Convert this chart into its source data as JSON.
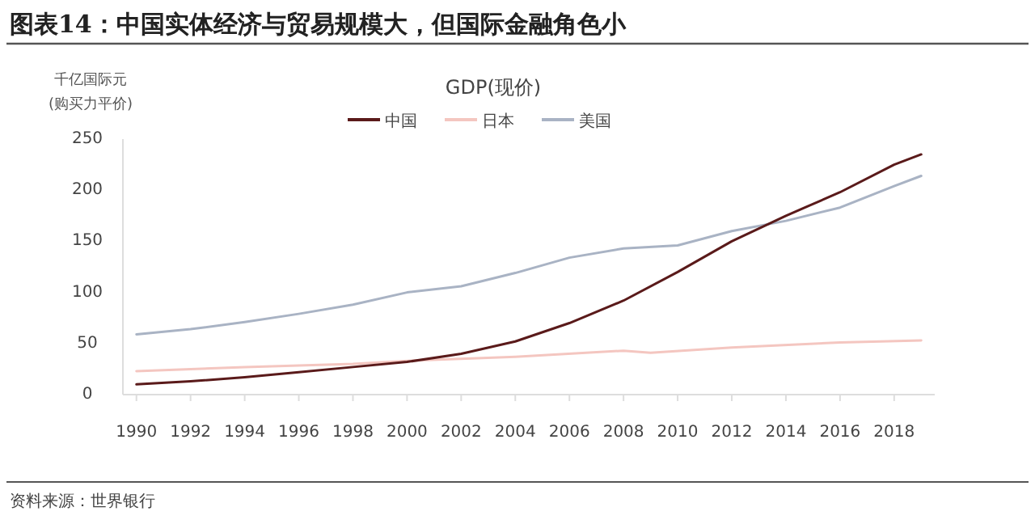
{
  "chart_data": {
    "type": "line",
    "title": "图表14：中国实体经济与贸易规模大，但国际金融角色小",
    "subtitle": "GDP(现价)",
    "ylabel": "千亿国际元\n(购买力平价)",
    "annotations": [
      "资料来源：世界银行"
    ],
    "xlim": [
      1989.5,
      2019.5
    ],
    "xticks": [
      1990,
      1992,
      1994,
      1996,
      1998,
      2000,
      2002,
      2004,
      2006,
      2008,
      2010,
      2012,
      2014,
      2016,
      2018
    ],
    "ylim": [
      0,
      250
    ],
    "yticks": [
      0,
      50,
      100,
      150,
      200,
      250
    ],
    "grid": false,
    "legend": "top",
    "marker": "none",
    "line_style": "solid",
    "series": [
      {
        "name": "中国",
        "color": "#5a1a1a",
        "x": [
          1990,
          1992,
          1994,
          1996,
          1998,
          2000,
          2002,
          2004,
          2006,
          2008,
          2010,
          2012,
          2014,
          2016,
          2018,
          2019
        ],
        "values": [
          10,
          13,
          17,
          22,
          27,
          32,
          40,
          52,
          70,
          92,
          120,
          150,
          175,
          198,
          225,
          235
        ]
      },
      {
        "name": "日本",
        "color": "#f4c6c0",
        "x": [
          1990,
          1994,
          1998,
          2000,
          2004,
          2008,
          2009,
          2012,
          2016,
          2019
        ],
        "values": [
          23,
          27,
          30,
          33,
          37,
          43,
          41,
          46,
          51,
          53
        ]
      },
      {
        "name": "美国",
        "color": "#a9b3c4",
        "x": [
          1990,
          1992,
          1994,
          1996,
          1998,
          2000,
          2002,
          2004,
          2006,
          2008,
          2010,
          2012,
          2014,
          2016,
          2018,
          2019
        ],
        "values": [
          59,
          64,
          71,
          79,
          88,
          100,
          106,
          119,
          134,
          143,
          146,
          160,
          170,
          183,
          204,
          214
        ]
      }
    ]
  }
}
